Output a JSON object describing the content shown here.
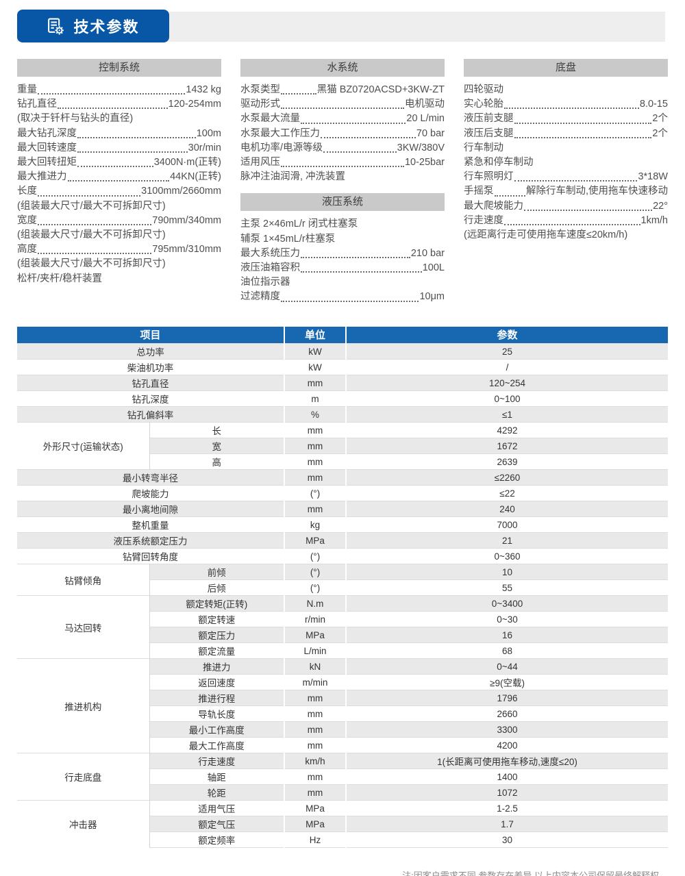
{
  "header": {
    "title": "技术参数",
    "icon": "spec-sheet-gear-icon"
  },
  "colors": {
    "accent_blue": "#0857a7",
    "table_header_blue": "#1767b1",
    "section_bar_gray": "#c9c9c9",
    "header_strip_gray": "#eeeeee",
    "row_alt_gray": "#e9e9e9"
  },
  "spec_sections": [
    {
      "title": "控制系统",
      "column": 1,
      "lines": [
        {
          "label": "重量",
          "value": "1432 kg"
        },
        {
          "label": "钻孔直径",
          "value": "120-254mm"
        },
        {
          "text": "(取决于钎杆与钻头的直径)"
        },
        {
          "label": "最大钻孔深度",
          "value": "100m"
        },
        {
          "label": "最大回转速度",
          "value": "30r/min"
        },
        {
          "label": "最大回转扭矩",
          "value": "3400N·m(正转)"
        },
        {
          "label": "最大推进力",
          "value": "44KN(正转)"
        },
        {
          "label": "长度",
          "value": "3100mm/2660mm"
        },
        {
          "text": "(组装最大尺寸/最大不可拆卸尺寸)"
        },
        {
          "label": "宽度",
          "value": "790mm/340mm"
        },
        {
          "text": "(组装最大尺寸/最大不可拆卸尺寸)"
        },
        {
          "label": "高度",
          "value": "795mm/310mm"
        },
        {
          "text": "(组装最大尺寸/最大不可拆卸尺寸)"
        },
        {
          "text": "松杆/夹杆/稳杆装置"
        }
      ]
    },
    {
      "title": "水系统",
      "column": 2,
      "lines": [
        {
          "label": "水泵类型",
          "value": "黑猫 BZ0720ACSD+3KW-ZT"
        },
        {
          "label": "驱动形式",
          "value": "电机驱动"
        },
        {
          "label": "水泵最大流量",
          "value": "20 L/min"
        },
        {
          "label": "水泵最大工作压力",
          "value": "70 bar"
        },
        {
          "label": "电机功率/电源等级",
          "value": "3KW/380V"
        },
        {
          "label": "适用风压",
          "value": "10-25bar"
        },
        {
          "text": "脉冲注油润滑, 冲洗装置"
        }
      ]
    },
    {
      "title": "液压系统",
      "column": 2,
      "lines": [
        {
          "text": "主泵 2×46mL/r 闭式柱塞泵"
        },
        {
          "text": "辅泵 1×45mL/r柱塞泵"
        },
        {
          "label": "最大系统压力",
          "value": "210 bar"
        },
        {
          "label": "液压油箱容积",
          "value": "100L"
        },
        {
          "text": "油位指示器"
        },
        {
          "label": "过滤精度",
          "value": "10μm"
        }
      ]
    },
    {
      "title": "底盘",
      "column": 3,
      "lines": [
        {
          "text": "四轮驱动"
        },
        {
          "label": "实心轮胎",
          "value": "8.0-15"
        },
        {
          "label": "液压前支腿",
          "value": "2个"
        },
        {
          "label": "液压后支腿",
          "value": "2个"
        },
        {
          "text": "行车制动"
        },
        {
          "text": "紧急和停车制动"
        },
        {
          "label": "行车照明灯",
          "value": "3*18W"
        },
        {
          "label": "手摇泵",
          "value": "解除行车制动,使用拖车快速移动"
        },
        {
          "label": "最大爬坡能力",
          "value": "22°"
        },
        {
          "label": "行走速度",
          "value": "1km/h"
        },
        {
          "text": "(远距离行走可使用拖车速度≤20km/h)"
        }
      ]
    }
  ],
  "table": {
    "headers": [
      "项目",
      "单位",
      "参数"
    ],
    "rows": [
      {
        "item": "总功率",
        "unit": "kW",
        "value": "25"
      },
      {
        "item": "柴油机功率",
        "unit": "kW",
        "value": "/"
      },
      {
        "item": "钻孔直径",
        "unit": "mm",
        "value": "120~254"
      },
      {
        "item": "钻孔深度",
        "unit": "m",
        "value": "0~100"
      },
      {
        "item": "钻孔偏斜率",
        "unit": "%",
        "value": "≤1"
      },
      {
        "group": "外形尺寸(运输状态)",
        "group_span": 3,
        "grouped": true,
        "item": "长",
        "unit": "mm",
        "value": "4292"
      },
      {
        "grouped": true,
        "item": "宽",
        "unit": "mm",
        "value": "1672"
      },
      {
        "grouped": true,
        "item": "高",
        "unit": "mm",
        "value": "2639"
      },
      {
        "item": "最小转弯半径",
        "unit": "mm",
        "value": "≤2260"
      },
      {
        "item": "爬坡能力",
        "unit": "(°)",
        "value": "≤22"
      },
      {
        "item": "最小离地间隙",
        "unit": "mm",
        "value": "240"
      },
      {
        "item": "整机重量",
        "unit": "kg",
        "value": "7000"
      },
      {
        "item": "液压系统额定压力",
        "unit": "MPa",
        "value": "21"
      },
      {
        "item": "钻臂回转角度",
        "unit": "(°)",
        "value": "0~360"
      },
      {
        "group": "钻臂倾角",
        "group_span": 2,
        "grouped": true,
        "item": "前倾",
        "unit": "(°)",
        "value": "10"
      },
      {
        "grouped": true,
        "item": "后倾",
        "unit": "(°)",
        "value": "55"
      },
      {
        "group": "马达回转",
        "group_span": 4,
        "grouped": true,
        "item": "额定转矩(正转)",
        "unit": "N.m",
        "value": "0~3400"
      },
      {
        "grouped": true,
        "item": "额定转速",
        "unit": "r/min",
        "value": "0~30"
      },
      {
        "grouped": true,
        "item": "额定压力",
        "unit": "MPa",
        "value": "16"
      },
      {
        "grouped": true,
        "item": "额定流量",
        "unit": "L/min",
        "value": "68"
      },
      {
        "group": "推进机构",
        "group_span": 6,
        "grouped": true,
        "item": "推进力",
        "unit": "kN",
        "value": "0~44"
      },
      {
        "grouped": true,
        "item": "返回速度",
        "unit": "m/min",
        "value": "≥9(空载)"
      },
      {
        "grouped": true,
        "item": "推进行程",
        "unit": "mm",
        "value": "1796"
      },
      {
        "grouped": true,
        "item": "导轨长度",
        "unit": "mm",
        "value": "2660"
      },
      {
        "grouped": true,
        "item": "最小工作高度",
        "unit": "mm",
        "value": "3300"
      },
      {
        "grouped": true,
        "item": "最大工作高度",
        "unit": "mm",
        "value": "4200"
      },
      {
        "group": "行走底盘",
        "group_span": 3,
        "grouped": true,
        "item": "行走速度",
        "unit": "km/h",
        "value": "1(长距离可使用拖车移动,速度≤20)"
      },
      {
        "grouped": true,
        "item": "轴距",
        "unit": "mm",
        "value": "1400"
      },
      {
        "grouped": true,
        "item": "轮距",
        "unit": "mm",
        "value": "1072"
      },
      {
        "group": "冲击器",
        "group_span": 3,
        "grouped": true,
        "item": "适用气压",
        "unit": "MPa",
        "value": "1-2.5"
      },
      {
        "grouped": true,
        "item": "额定气压",
        "unit": "MPa",
        "value": "1.7"
      },
      {
        "grouped": true,
        "item": "额定频率",
        "unit": "Hz",
        "value": "30"
      }
    ]
  },
  "footnote": "注:因客户需求不同,参数存在差异,以上内容本公司保留最终解释权。"
}
